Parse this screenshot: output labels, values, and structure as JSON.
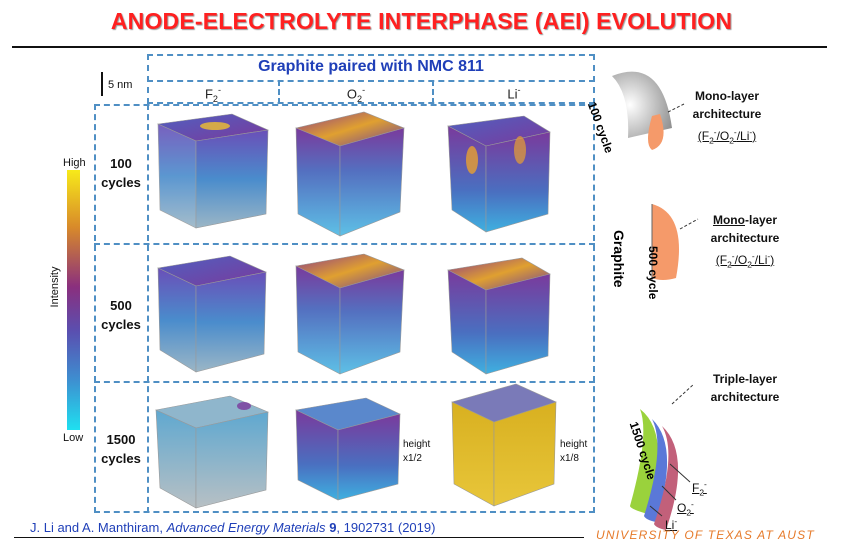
{
  "title": "ANODE-ELECTROLYTE INTERPHASE (AEI) EVOLUTION",
  "header": "Graphite paired with NMC 811",
  "scale_bar": "5 nm",
  "columns": [
    {
      "base": "F",
      "sub": "2",
      "sup": "-"
    },
    {
      "base": "O",
      "sub": "2",
      "sup": "-"
    },
    {
      "base": "Li",
      "sub": "",
      "sup": "-"
    }
  ],
  "rows": [
    {
      "n": "100",
      "unit": "cycles"
    },
    {
      "n": "500",
      "unit": "cycles"
    },
    {
      "n": "1500",
      "unit": "cycles"
    }
  ],
  "colorbar": {
    "high": "High",
    "low": "Low",
    "label": "Intensity",
    "colors": [
      "#f7ea1a",
      "#d88a2a",
      "#8a2f7e",
      "#5a4fb0",
      "#3f8ccf",
      "#1fe0f0"
    ]
  },
  "height_notes": [
    {
      "label": "height",
      "value": "x1/2"
    },
    {
      "label": "height",
      "value": "x1/8"
    }
  ],
  "right": {
    "graphite": "Graphite",
    "c100": "100 cycle",
    "c500": "500 cycle",
    "c1500": "1500 cycle",
    "mono_a": [
      "Mono-layer",
      "architecture"
    ],
    "mono_b_bold": "Mono",
    "mono_b": [
      "-layer",
      "architecture"
    ],
    "formula": "(F2-/O2-/Li-)",
    "triple": [
      "Triple-layer",
      "architecture"
    ],
    "labels": [
      "F2-",
      "O2-",
      "Li-"
    ],
    "colors": {
      "mono": "#f59a6a",
      "f": "#9ad23c",
      "o": "#5a78d8",
      "li": "#c2607a"
    }
  },
  "citation": {
    "authors": "J. Li and A. Manthiram, ",
    "journal": "Advanced Energy Materials",
    "volume": "9",
    "rest": ", 1902731 (2019)"
  },
  "footer": "UNIVERSITY OF TEXAS AT AUST"
}
